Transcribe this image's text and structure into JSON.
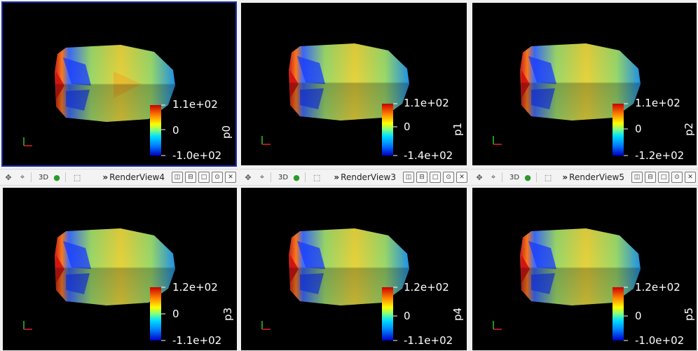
{
  "views": [
    {
      "title": "p0",
      "max": "1.1e+02",
      "mid": "0",
      "min": "-1.0e+02"
    },
    {
      "title": "p1",
      "max": "1.1e+02",
      "mid": "0",
      "min": "-1.4e+02"
    },
    {
      "title": "p2",
      "max": "1.1e+02",
      "mid": "0",
      "min": "-1.2e+02"
    },
    {
      "title": "p3",
      "max": "1.2e+02",
      "mid": "0",
      "min": "-1.1e+02"
    },
    {
      "title": "p4",
      "max": "1.2e+02",
      "mid": "0",
      "min": "-1.1e+02"
    },
    {
      "title": "p5",
      "max": "1.2e+02",
      "mid": "0",
      "min": "-1.0e+02"
    }
  ],
  "toolbars": [
    {
      "mode": "3D",
      "view_name": "RenderView4",
      "arrows": "»"
    },
    {
      "mode": "3D",
      "view_name": "RenderView3",
      "arrows": "»"
    },
    {
      "mode": "3D",
      "view_name": "RenderView5",
      "arrows": "»"
    }
  ],
  "icons": [
    "camera-icon",
    "cursor-icon",
    "render-icon",
    "select-icon",
    "split-horizontal-icon",
    "split-vertical-icon",
    "maximize-icon",
    "lock-icon",
    "close-icon"
  ]
}
